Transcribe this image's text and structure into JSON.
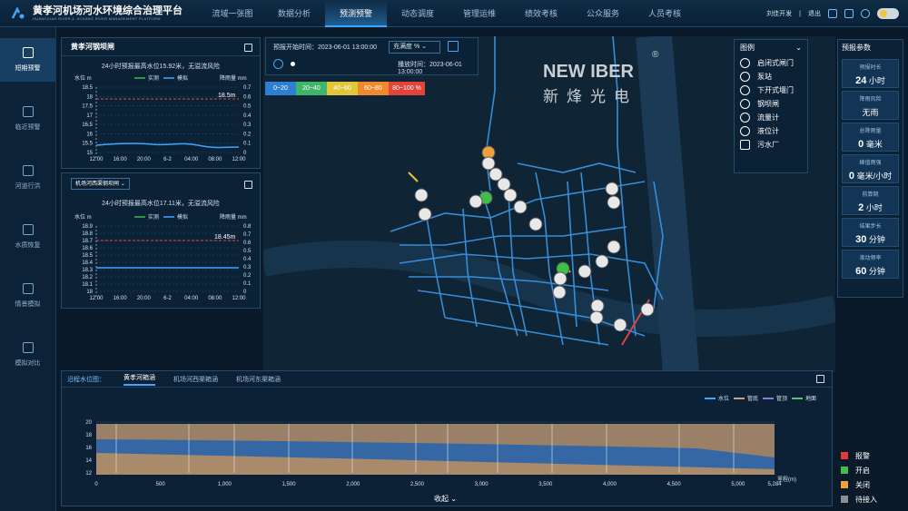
{
  "app": {
    "title": "黄孝河机场河水环境综合治理平台",
    "subtitle": "HUANGXIAO RIVER & JICHANG RIVER MANAGEMENT PLATFORM"
  },
  "nav": [
    "流域一张图",
    "数据分析",
    "预测预警",
    "动态调度",
    "管理运维",
    "绩效考核",
    "公众服务",
    "人员考核"
  ],
  "top_right": {
    "user": "刘佳开发",
    "logout": "退出"
  },
  "left_nav": [
    "短期预警",
    "临近预警",
    "河道行洪",
    "水质恢复",
    "情景模拟",
    "模拟对比"
  ],
  "panel1": {
    "title": "黄孝河钢坝闸",
    "subtitle": "24小时预报最高水位15.92米，无溢流风险",
    "legend_obs": "实测",
    "legend_sim": "模拟",
    "ylabel": "水位 m",
    "y2label": "降雨量 mm",
    "peak": "18.5m",
    "yticks": [
      "18.5",
      "18",
      "17.5",
      "17",
      "16.5",
      "16",
      "15.5",
      "15"
    ],
    "y2ticks": [
      "0",
      "0.1",
      "0.2",
      "0.3",
      "0.4",
      "0.5",
      "0.6",
      "0.7"
    ],
    "xticks": [
      "12:00",
      "16:00",
      "20:00",
      "6-2",
      "04:00",
      "08:00",
      "12:00"
    ]
  },
  "panel2": {
    "select": "机场河西渠钢坝闸",
    "subtitle": "24小时预报最高水位17.11米，无溢流风险",
    "legend_obs": "实测",
    "legend_sim": "模拟",
    "ylabel": "水位 m",
    "y2label": "降雨量 mm",
    "peak": "18.45m",
    "yticks": [
      "18.9",
      "18.8",
      "18.7",
      "18.6",
      "18.5",
      "18.4",
      "18.3",
      "18.2",
      "18.1",
      "18"
    ],
    "y2ticks": [
      "0",
      "0.1",
      "0.2",
      "0.3",
      "0.4",
      "0.5",
      "0.6",
      "0.7",
      "0.8"
    ],
    "xticks": [
      "12:00",
      "16:00",
      "20:00",
      "6-2",
      "04:00",
      "08:00",
      "12:00"
    ]
  },
  "forecast": {
    "start_label": "预报开始时间：",
    "start": "2023-06-01 13:00:00",
    "select": "充满度 %",
    "play_label": "播放时间：",
    "play": "2023-06-01 13:00:00"
  },
  "scale": [
    {
      "label": "0~20",
      "color": "#2e7fd1"
    },
    {
      "label": "20~40",
      "color": "#3fb56a"
    },
    {
      "label": "40~60",
      "color": "#e2c63a"
    },
    {
      "label": "60~80",
      "color": "#ee8a2b"
    },
    {
      "label": "80~100 %",
      "color": "#e1443a"
    }
  ],
  "brand": {
    "en": "NEW  IBER",
    "cn": "新烽光电",
    "reg": "®"
  },
  "legend": {
    "title": "图例",
    "items": [
      "启闭式闸门",
      "泵站",
      "下开式堰门",
      "钢坝闸",
      "流量计",
      "液位计",
      "污水厂"
    ]
  },
  "params": {
    "title": "预报参数",
    "items": [
      {
        "label": "预报时长",
        "value": "24",
        "unit": "小时"
      },
      {
        "label": "降雨风险",
        "value": "",
        "unit": "无雨"
      },
      {
        "label": "总降雨量",
        "value": "0",
        "unit": "毫米"
      },
      {
        "label": "峰值雨强",
        "value": "0",
        "unit": "毫米/小时"
      },
      {
        "label": "前算期",
        "value": "2",
        "unit": "小时"
      },
      {
        "label": "结果步长",
        "value": "30",
        "unit": "分钟"
      },
      {
        "label": "滚动频率",
        "value": "60",
        "unit": "分钟"
      }
    ]
  },
  "bottom": {
    "label": "沿程水位图：",
    "tabs": [
      "黄孝河箱涵",
      "机场河西渠箱涵",
      "机场河东渠箱涵"
    ],
    "legend": [
      "水位",
      "管底",
      "管顶",
      "地面"
    ],
    "yticks": [
      "20",
      "18",
      "16",
      "14",
      "12"
    ],
    "xticks": [
      "0",
      "500",
      "1,000",
      "1,500",
      "2,000",
      "2,500",
      "3,000",
      "3,500",
      "4,000",
      "4,500",
      "5,000",
      "5,284"
    ],
    "xlabel": "里程(m)",
    "collapse": "收起"
  },
  "status": [
    {
      "label": "报警",
      "color": "#e03a3a"
    },
    {
      "label": "开启",
      "color": "#3fbf49"
    },
    {
      "label": "关闭",
      "color": "#f0a23a"
    },
    {
      "label": "待接入",
      "color": "#8b8f94"
    }
  ]
}
